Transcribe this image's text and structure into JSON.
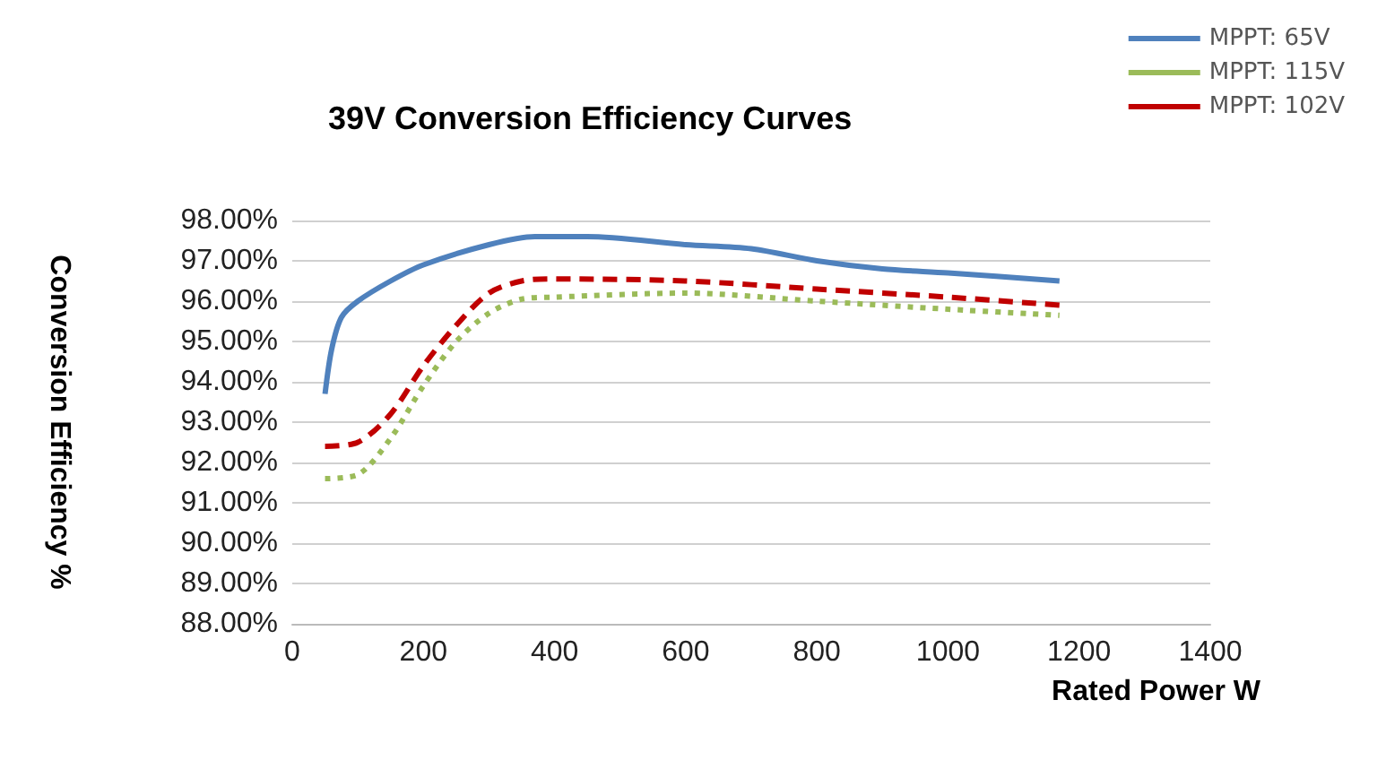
{
  "chart_data": {
    "type": "line",
    "title": "39V Conversion Efficiency Curves",
    "xlabel": "Rated Power W",
    "ylabel": "Conversion Efficiency %",
    "series": [
      {
        "name": "MPPT: 65V",
        "color": "#4f81bd",
        "line_style": "solid",
        "x": [
          50,
          60,
          75,
          100,
          150,
          200,
          300,
          370,
          450,
          600,
          700,
          800,
          900,
          1000,
          1170
        ],
        "values": [
          93.7,
          94.8,
          95.6,
          96.0,
          96.5,
          96.9,
          97.4,
          97.6,
          97.6,
          97.4,
          97.3,
          97.0,
          96.8,
          96.7,
          96.5
        ]
      },
      {
        "name": "MPPT: 115V",
        "color": "#9bbb59",
        "line_style": "dotted",
        "x": [
          50,
          100,
          150,
          200,
          250,
          300,
          350,
          400,
          600,
          800,
          1000,
          1170
        ],
        "values": [
          91.6,
          91.7,
          92.6,
          93.9,
          95.0,
          95.7,
          96.05,
          96.1,
          96.2,
          96.0,
          95.8,
          95.65
        ]
      },
      {
        "name": "MPPT: 102V",
        "color": "#c00000",
        "line_style": "dashed",
        "x": [
          50,
          100,
          150,
          200,
          250,
          300,
          350,
          400,
          600,
          800,
          1000,
          1170
        ],
        "values": [
          92.4,
          92.5,
          93.2,
          94.4,
          95.4,
          96.2,
          96.5,
          96.55,
          96.5,
          96.3,
          96.1,
          95.9
        ]
      }
    ],
    "xlim": [
      0,
      1400
    ],
    "xticks": [
      0,
      200,
      400,
      600,
      800,
      1000,
      1200,
      1400
    ],
    "ylim": [
      88,
      98
    ],
    "yticks": [
      {
        "value": 88,
        "label": "88.00%"
      },
      {
        "value": 89,
        "label": "89.00%"
      },
      {
        "value": 90,
        "label": "90.00%"
      },
      {
        "value": 91,
        "label": "91.00%"
      },
      {
        "value": 92,
        "label": "92.00%"
      },
      {
        "value": 93,
        "label": "93.00%"
      },
      {
        "value": 94,
        "label": "94.00%"
      },
      {
        "value": 95,
        "label": "95.00%"
      },
      {
        "value": 96,
        "label": "96.00%"
      },
      {
        "value": 97,
        "label": "97.00%"
      },
      {
        "value": 98,
        "label": "98.00%"
      }
    ],
    "grid": "y",
    "legend": "top right",
    "marker": "none"
  }
}
